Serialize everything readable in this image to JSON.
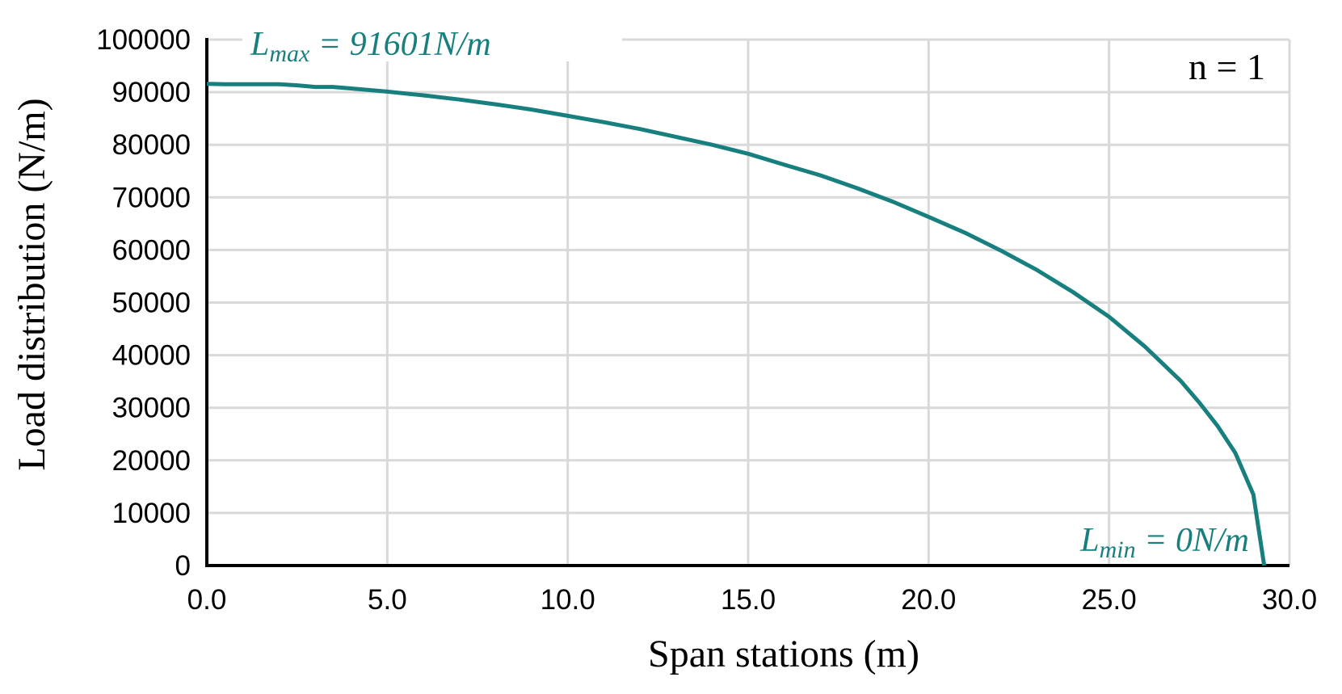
{
  "chart_data": {
    "type": "line",
    "xlabel": "Span stations (m)",
    "ylabel": "Load distribution (N/m)",
    "xlim": [
      0,
      30
    ],
    "ylim": [
      0,
      100000
    ],
    "x_ticks": [
      "0.0",
      "5.0",
      "10.0",
      "15.0",
      "20.0",
      "25.0",
      "30.0"
    ],
    "y_ticks": [
      "0",
      "10000",
      "20000",
      "30000",
      "40000",
      "50000",
      "60000",
      "70000",
      "80000",
      "90000",
      "100000"
    ],
    "grid": true,
    "series": [
      {
        "color": "#17807e",
        "x": [
          0,
          0.5,
          1,
          2,
          2.5,
          3,
          3.5,
          4,
          5,
          6,
          7,
          8,
          9,
          10,
          11,
          12,
          13,
          14,
          15,
          16,
          17,
          18,
          19,
          20,
          21,
          22,
          23,
          24,
          25,
          26,
          27,
          27.5,
          28,
          28.5,
          29,
          29.3
        ],
        "y": [
          91601,
          91500,
          91500,
          91500,
          91300,
          91000,
          91000,
          90700,
          90100,
          89400,
          88600,
          87700,
          86700,
          85500,
          84300,
          83000,
          81500,
          80000,
          78300,
          76200,
          74200,
          71800,
          69200,
          66300,
          63300,
          59900,
          56200,
          52000,
          47300,
          41600,
          35000,
          31000,
          26600,
          21400,
          13500,
          0
        ]
      }
    ],
    "annotations": {
      "max": {
        "base": "L",
        "sub": "max",
        "rest": " = 91601N/m"
      },
      "min": {
        "base": "L",
        "sub": "min",
        "rest": " = 0N/m"
      },
      "n_label": "n = 1"
    }
  }
}
